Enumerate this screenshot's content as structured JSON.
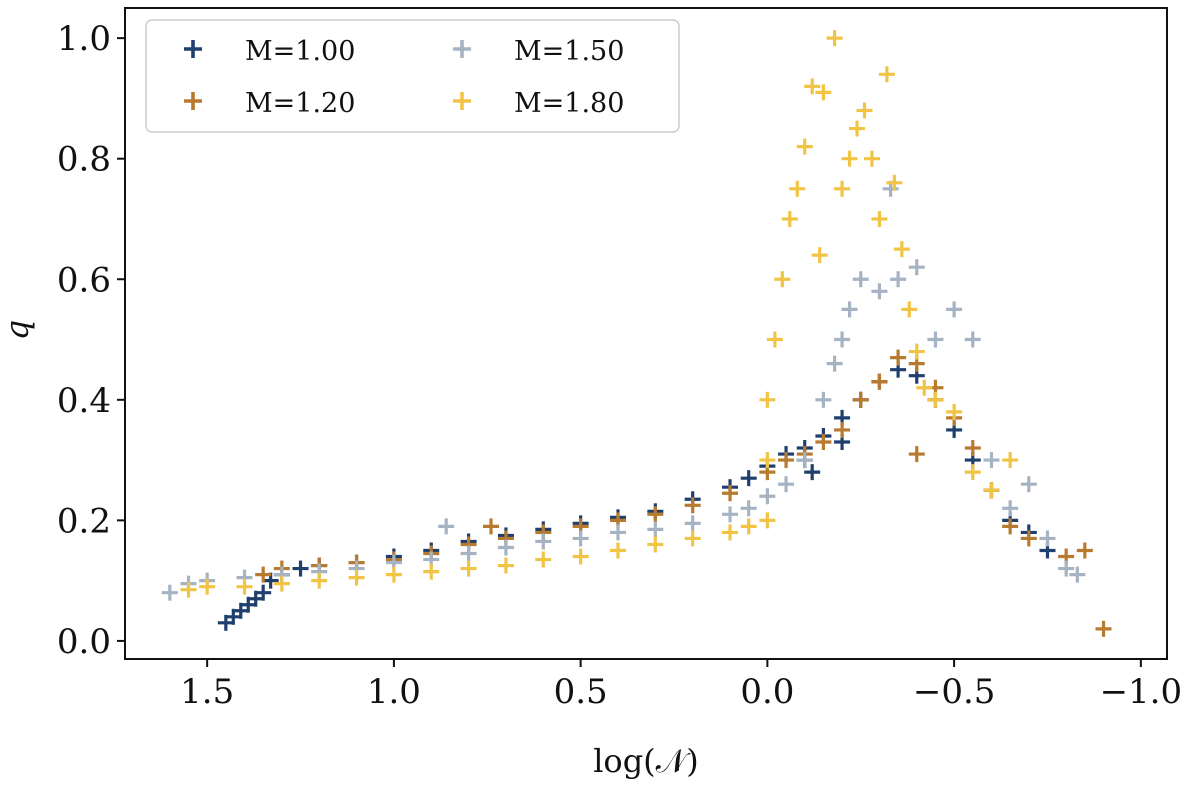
{
  "chart_data": {
    "type": "scatter",
    "xlabel": "log(𝒩)",
    "ylabel": "q",
    "xlim": [
      1.72,
      -1.07
    ],
    "ylim": [
      -0.03,
      1.05
    ],
    "x_inverted": true,
    "x_ticks": [
      1.5,
      1.0,
      0.5,
      0.0,
      -0.5,
      -1.0
    ],
    "x_tick_labels": [
      "1.5",
      "1.0",
      "0.5",
      "0.0",
      "−0.5",
      "−1.0"
    ],
    "y_ticks": [
      0.0,
      0.2,
      0.4,
      0.6,
      0.8,
      1.0
    ],
    "y_tick_labels": [
      "0.0",
      "0.2",
      "0.4",
      "0.6",
      "0.8",
      "1.0"
    ],
    "grid": false,
    "legend_placement": "top-left",
    "marker": "plus",
    "series": [
      {
        "name": "M=1.00",
        "color": "#1f3f6e",
        "points": [
          [
            1.45,
            0.03
          ],
          [
            1.43,
            0.04
          ],
          [
            1.41,
            0.05
          ],
          [
            1.39,
            0.06
          ],
          [
            1.37,
            0.07
          ],
          [
            1.35,
            0.08
          ],
          [
            1.33,
            0.1
          ],
          [
            1.3,
            0.11
          ],
          [
            1.25,
            0.12
          ],
          [
            1.2,
            0.125
          ],
          [
            1.1,
            0.13
          ],
          [
            1.0,
            0.14
          ],
          [
            0.9,
            0.15
          ],
          [
            0.8,
            0.165
          ],
          [
            0.7,
            0.175
          ],
          [
            0.6,
            0.185
          ],
          [
            0.5,
            0.195
          ],
          [
            0.4,
            0.205
          ],
          [
            0.3,
            0.215
          ],
          [
            0.2,
            0.235
          ],
          [
            0.1,
            0.255
          ],
          [
            0.05,
            0.27
          ],
          [
            0.0,
            0.29
          ],
          [
            -0.05,
            0.31
          ],
          [
            -0.1,
            0.32
          ],
          [
            -0.15,
            0.34
          ],
          [
            -0.2,
            0.37
          ],
          [
            -0.25,
            0.4
          ],
          [
            -0.3,
            0.43
          ],
          [
            -0.35,
            0.45
          ],
          [
            -0.4,
            0.44
          ],
          [
            -0.45,
            0.4
          ],
          [
            -0.5,
            0.35
          ],
          [
            -0.55,
            0.3
          ],
          [
            -0.6,
            0.25
          ],
          [
            -0.65,
            0.2
          ],
          [
            -0.7,
            0.18
          ],
          [
            -0.75,
            0.15
          ],
          [
            -0.1,
            0.3
          ],
          [
            -0.12,
            0.28
          ],
          [
            -0.2,
            0.33
          ]
        ]
      },
      {
        "name": "M=1.20",
        "color": "#b87a2e",
        "points": [
          [
            1.35,
            0.11
          ],
          [
            1.3,
            0.12
          ],
          [
            1.2,
            0.125
          ],
          [
            1.1,
            0.13
          ],
          [
            1.0,
            0.135
          ],
          [
            0.9,
            0.145
          ],
          [
            0.8,
            0.16
          ],
          [
            0.7,
            0.17
          ],
          [
            0.6,
            0.18
          ],
          [
            0.5,
            0.19
          ],
          [
            0.4,
            0.2
          ],
          [
            0.3,
            0.21
          ],
          [
            0.2,
            0.225
          ],
          [
            0.1,
            0.245
          ],
          [
            0.0,
            0.28
          ],
          [
            -0.05,
            0.3
          ],
          [
            -0.1,
            0.31
          ],
          [
            -0.15,
            0.33
          ],
          [
            -0.2,
            0.35
          ],
          [
            -0.25,
            0.4
          ],
          [
            -0.3,
            0.43
          ],
          [
            -0.35,
            0.47
          ],
          [
            -0.4,
            0.46
          ],
          [
            -0.45,
            0.42
          ],
          [
            -0.5,
            0.37
          ],
          [
            -0.55,
            0.32
          ],
          [
            -0.6,
            0.25
          ],
          [
            -0.65,
            0.19
          ],
          [
            -0.7,
            0.17
          ],
          [
            -0.8,
            0.14
          ],
          [
            -0.85,
            0.15
          ],
          [
            -0.9,
            0.02
          ],
          [
            0.74,
            0.19
          ],
          [
            -0.4,
            0.31
          ]
        ]
      },
      {
        "name": "M=1.50",
        "color": "#a5b3c2",
        "points": [
          [
            1.6,
            0.08
          ],
          [
            1.55,
            0.095
          ],
          [
            1.5,
            0.1
          ],
          [
            1.4,
            0.105
          ],
          [
            1.3,
            0.11
          ],
          [
            1.2,
            0.115
          ],
          [
            1.1,
            0.12
          ],
          [
            1.0,
            0.13
          ],
          [
            0.9,
            0.135
          ],
          [
            0.86,
            0.19
          ],
          [
            0.8,
            0.145
          ],
          [
            0.7,
            0.155
          ],
          [
            0.6,
            0.165
          ],
          [
            0.5,
            0.17
          ],
          [
            0.4,
            0.18
          ],
          [
            0.3,
            0.185
          ],
          [
            0.2,
            0.195
          ],
          [
            0.1,
            0.21
          ],
          [
            0.05,
            0.22
          ],
          [
            0.0,
            0.24
          ],
          [
            -0.05,
            0.26
          ],
          [
            -0.1,
            0.3
          ],
          [
            -0.15,
            0.4
          ],
          [
            -0.18,
            0.46
          ],
          [
            -0.2,
            0.5
          ],
          [
            -0.22,
            0.55
          ],
          [
            -0.25,
            0.6
          ],
          [
            -0.3,
            0.58
          ],
          [
            -0.33,
            0.75
          ],
          [
            -0.35,
            0.6
          ],
          [
            -0.4,
            0.62
          ],
          [
            -0.45,
            0.5
          ],
          [
            -0.5,
            0.55
          ],
          [
            -0.55,
            0.5
          ],
          [
            -0.6,
            0.3
          ],
          [
            -0.65,
            0.22
          ],
          [
            -0.7,
            0.26
          ],
          [
            -0.75,
            0.17
          ],
          [
            -0.8,
            0.12
          ],
          [
            -0.83,
            0.11
          ]
        ]
      },
      {
        "name": "M=1.80",
        "color": "#f1c445",
        "points": [
          [
            1.55,
            0.085
          ],
          [
            1.5,
            0.09
          ],
          [
            1.4,
            0.09
          ],
          [
            1.3,
            0.095
          ],
          [
            1.2,
            0.1
          ],
          [
            1.1,
            0.105
          ],
          [
            1.0,
            0.11
          ],
          [
            0.9,
            0.115
          ],
          [
            0.8,
            0.12
          ],
          [
            0.7,
            0.125
          ],
          [
            0.6,
            0.135
          ],
          [
            0.5,
            0.14
          ],
          [
            0.4,
            0.15
          ],
          [
            0.3,
            0.16
          ],
          [
            0.2,
            0.17
          ],
          [
            0.1,
            0.18
          ],
          [
            0.05,
            0.19
          ],
          [
            0.0,
            0.2
          ],
          [
            0.0,
            0.3
          ],
          [
            0.0,
            0.4
          ],
          [
            -0.02,
            0.5
          ],
          [
            -0.04,
            0.6
          ],
          [
            -0.06,
            0.7
          ],
          [
            -0.08,
            0.75
          ],
          [
            -0.1,
            0.82
          ],
          [
            -0.12,
            0.92
          ],
          [
            -0.15,
            0.91
          ],
          [
            -0.18,
            1.0
          ],
          [
            -0.2,
            0.75
          ],
          [
            -0.22,
            0.8
          ],
          [
            -0.24,
            0.85
          ],
          [
            -0.26,
            0.88
          ],
          [
            -0.28,
            0.8
          ],
          [
            -0.3,
            0.7
          ],
          [
            -0.32,
            0.94
          ],
          [
            -0.34,
            0.76
          ],
          [
            -0.36,
            0.65
          ],
          [
            -0.38,
            0.55
          ],
          [
            -0.4,
            0.48
          ],
          [
            -0.42,
            0.42
          ],
          [
            -0.45,
            0.4
          ],
          [
            -0.5,
            0.38
          ],
          [
            -0.55,
            0.28
          ],
          [
            -0.6,
            0.25
          ],
          [
            -0.65,
            0.3
          ],
          [
            -0.14,
            0.64
          ]
        ]
      }
    ]
  }
}
